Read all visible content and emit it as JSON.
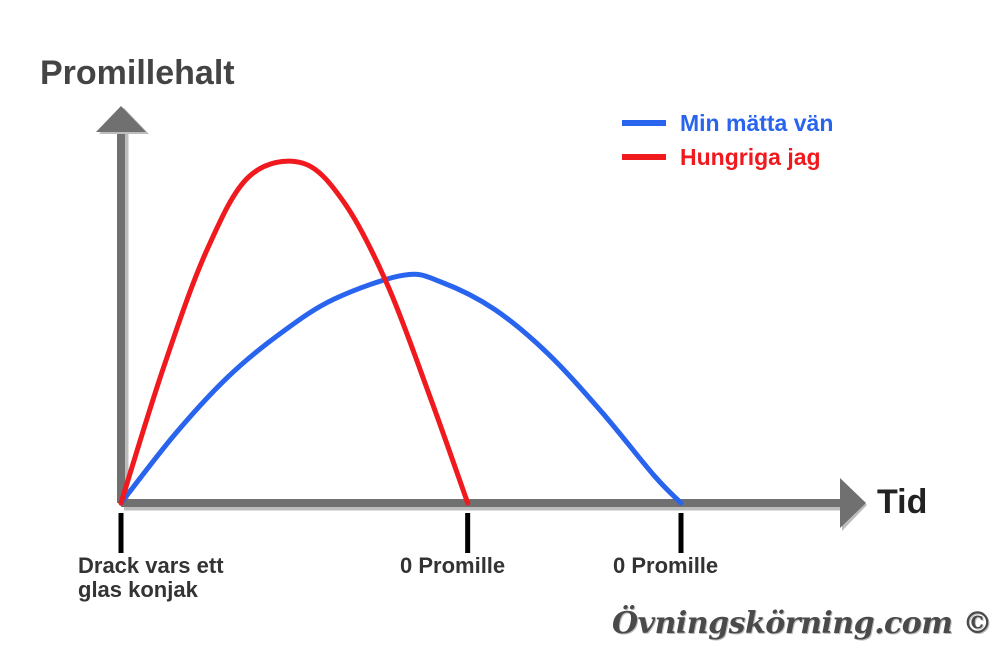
{
  "chart_data": {
    "type": "line",
    "ylabel": "Promillehalt",
    "xlabel": "Tid",
    "ticks": [
      {
        "x": 0,
        "label": "Drack vars ett\nglas konjak"
      },
      {
        "x": 6.5,
        "label": "0 Promille"
      },
      {
        "x": 10.5,
        "label": "0 Promille"
      }
    ],
    "xlim": [
      0,
      13.5
    ],
    "ylim": [
      0,
      1.0
    ],
    "grid": false,
    "legend_position": "top-right",
    "series": [
      {
        "name": "Min mätta vän",
        "color": "#2864ee",
        "x": [
          0,
          1,
          2,
          3,
          4,
          5.3,
          6,
          7,
          8,
          9,
          10,
          10.5
        ],
        "y": [
          0,
          0.2,
          0.37,
          0.5,
          0.6,
          0.67,
          0.65,
          0.57,
          0.44,
          0.27,
          0.08,
          0
        ]
      },
      {
        "name": "Hungriga jag",
        "color": "#f0191e",
        "x": [
          0,
          0.8,
          1.6,
          2.4,
          3.4,
          4.2,
          5,
          5.8,
          6.5
        ],
        "y": [
          0,
          0.4,
          0.74,
          0.96,
          1.0,
          0.88,
          0.64,
          0.31,
          0
        ]
      }
    ]
  },
  "watermark": "Övningskörning.com ©"
}
